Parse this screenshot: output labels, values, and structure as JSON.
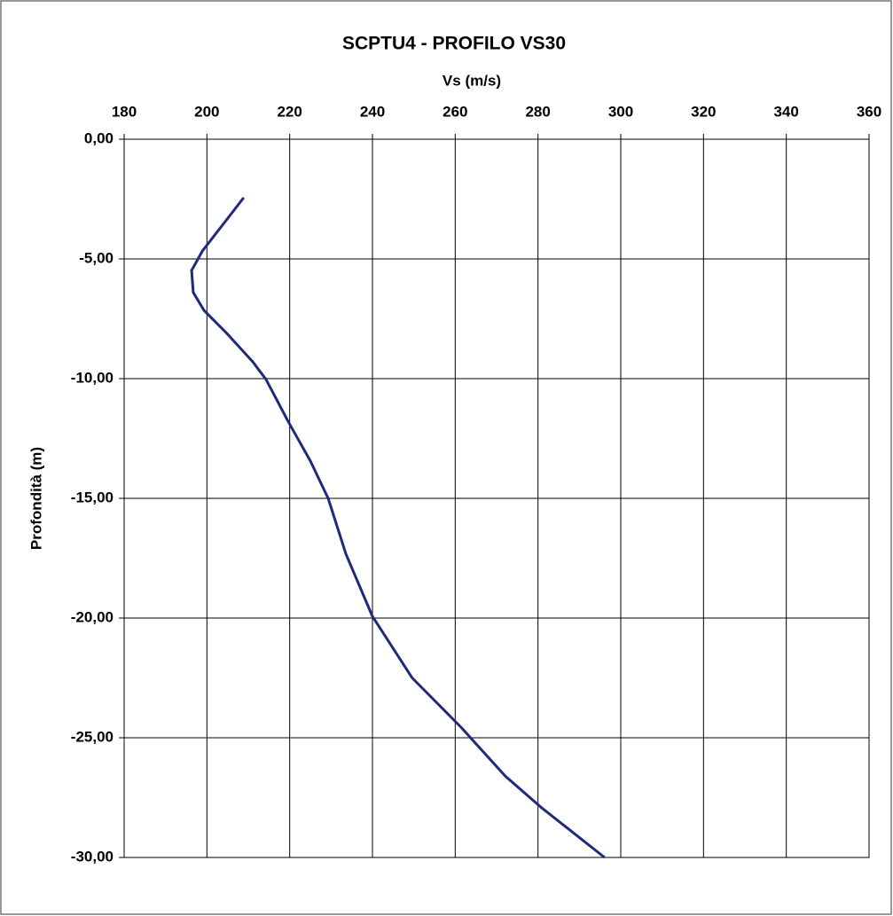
{
  "chart_data": {
    "type": "line",
    "title": "SCPTU4 - PROFILO VS30",
    "x_label": "Vs (m/s)",
    "y_label": "Profondità (m)",
    "x": [
      208.9,
      198.9,
      196.3,
      196.7,
      199.3,
      204.6,
      211.1,
      214.3,
      219.6,
      225,
      229.3,
      233.6,
      240,
      249.6,
      261.4,
      272.1,
      280.7,
      296.1
    ],
    "values": [
      -2.44,
      -4.67,
      -5.48,
      -6.4,
      -7.15,
      -8.07,
      -9.3,
      -10.04,
      -11.78,
      -13.44,
      -15,
      -17.33,
      -19.93,
      -22.5,
      -24.56,
      -26.6,
      -27.9,
      -30
    ],
    "color": "#1f2a7a",
    "xlim": [
      180,
      360
    ],
    "xticks": [
      180,
      200,
      220,
      240,
      260,
      280,
      300,
      320,
      340,
      360
    ],
    "ylim": [
      -30,
      0
    ],
    "yticks": [
      {
        "value": 0,
        "label": "0,00"
      },
      {
        "value": -5,
        "label": "-5,00"
      },
      {
        "value": -10,
        "label": "-10,00"
      },
      {
        "value": -15,
        "label": "-15,00"
      },
      {
        "value": -20,
        "label": "-20,00"
      },
      {
        "value": -25,
        "label": "-25,00"
      },
      {
        "value": -30,
        "label": "-30,00"
      }
    ],
    "grid": true
  }
}
